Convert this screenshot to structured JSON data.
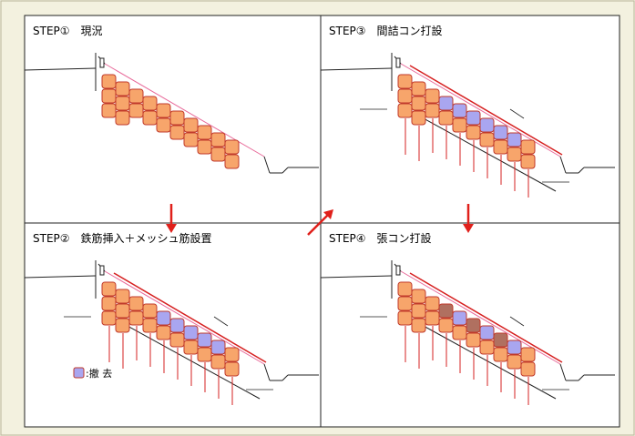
{
  "panels": [
    {
      "label": "STEP①　現況"
    },
    {
      "label": "STEP③　間詰コン打設"
    },
    {
      "label": "STEP②　鉄筋挿入＋メッシュ筋設置"
    },
    {
      "label": "STEP④　張コン打設"
    }
  ],
  "legend": {
    "label": ":撤 去"
  }
}
